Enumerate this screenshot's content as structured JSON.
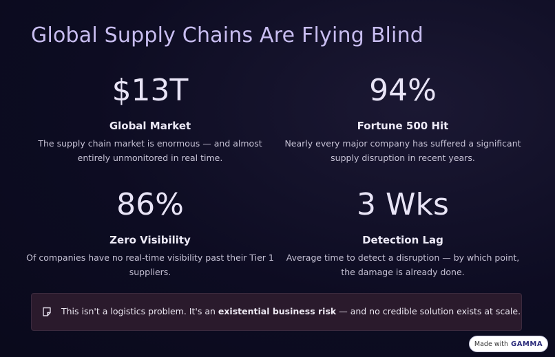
{
  "title": "Global Supply Chains Are Flying Blind",
  "stats": [
    {
      "value": "$13T",
      "label": "Global Market",
      "description": "The supply chain market is enormous — and almost entirely unmonitored in real time."
    },
    {
      "value": "94%",
      "label": "Fortune 500 Hit",
      "description": "Nearly every major company has suffered a significant supply disruption in recent years."
    },
    {
      "value": "86%",
      "label": "Zero Visibility",
      "description": "Of companies have no real-time visibility past their Tier 1 suppliers."
    },
    {
      "value": "3 Wks",
      "label": "Detection Lag",
      "description": "Average time to detect a disruption — by which point, the damage is already done."
    }
  ],
  "callout": {
    "before": "This isn't a logistics problem. It's an",
    "bold": "existential business risk",
    "after": "— and no credible solution exists at scale."
  },
  "badge": {
    "prefix": "Made with",
    "brand": "GAMMA"
  }
}
